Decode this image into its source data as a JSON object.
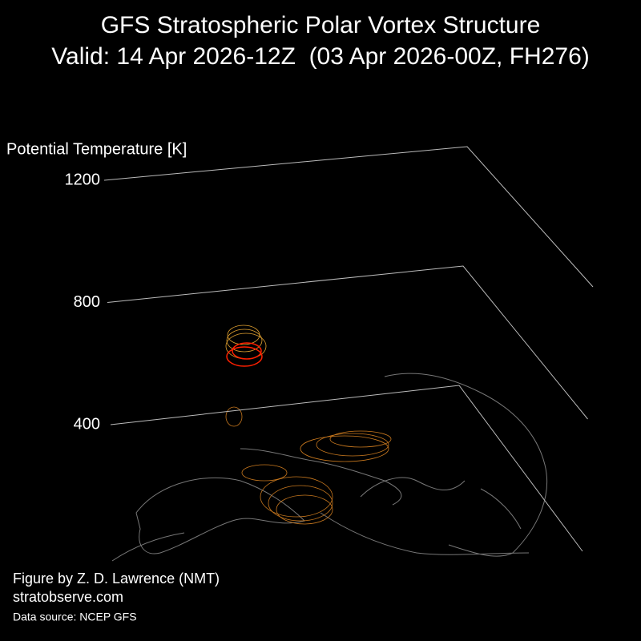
{
  "chart_data": {
    "type": "3d",
    "title": "GFS Stratospheric Polar Vortex Structure",
    "subtitle": "Valid: 14 Apr 2026-12Z  (03 Apr 2026-00Z, FH276)",
    "ylabel": "Potential Temperature [K]",
    "ylim": [
      400,
      1200
    ],
    "yticks": [
      400,
      800,
      1200
    ],
    "grid": true
  },
  "credits": {
    "author": "Figure by Z. D. Lawrence (NMT)",
    "website": "stratobserve.com",
    "source": "Data source: NCEP GFS"
  }
}
